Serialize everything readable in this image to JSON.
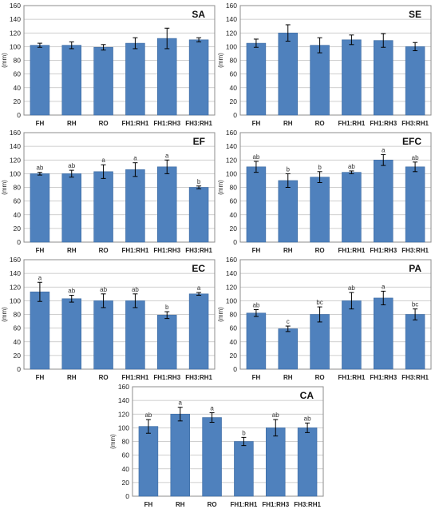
{
  "colors": {
    "bar": "#4f81bd",
    "bar_edge": "#3b6aa2",
    "frame": "#8c8c8c",
    "grid": "#bfbfbf",
    "error": "#000000"
  },
  "chart_data": [
    {
      "type": "bar",
      "title": "SA",
      "ylabel": "(mm)",
      "ylim": [
        0,
        160
      ],
      "yticks": [
        0,
        20,
        40,
        60,
        80,
        100,
        120,
        140,
        160
      ],
      "grid": true,
      "categories": [
        "FH",
        "RH",
        "RO",
        "FH1:RH1",
        "FH1:RH3",
        "FH3:RH1"
      ],
      "values": [
        102,
        102,
        99,
        105,
        112,
        110
      ],
      "errors": [
        3,
        5,
        4,
        8,
        15,
        3
      ],
      "letters": []
    },
    {
      "type": "bar",
      "title": "SE",
      "ylabel": "(mm)",
      "ylim": [
        0,
        160
      ],
      "yticks": [
        0,
        20,
        40,
        60,
        80,
        100,
        120,
        140,
        160
      ],
      "grid": true,
      "categories": [
        "FH",
        "RH",
        "RO",
        "FH1:RH1",
        "FH1:RH3",
        "FH3:RH1"
      ],
      "values": [
        105,
        120,
        102,
        110,
        109,
        100
      ],
      "errors": [
        6,
        12,
        11,
        7,
        10,
        6
      ],
      "letters": []
    },
    {
      "type": "bar",
      "title": "EF",
      "ylabel": "(mm)",
      "ylim": [
        0,
        160
      ],
      "yticks": [
        0,
        20,
        40,
        60,
        80,
        100,
        120,
        140,
        160
      ],
      "grid": true,
      "categories": [
        "FH",
        "RH",
        "RO",
        "FH1:RH1",
        "FH1:RH3",
        "FH3:RH1"
      ],
      "values": [
        100,
        100,
        103,
        106,
        110,
        80
      ],
      "errors": [
        2,
        5,
        10,
        10,
        10,
        2
      ],
      "letters": [
        "ab",
        "ab",
        "a",
        "a",
        "a",
        "b"
      ]
    },
    {
      "type": "bar",
      "title": "EFC",
      "ylabel": "(mm)",
      "ylim": [
        0,
        160
      ],
      "yticks": [
        0,
        20,
        40,
        60,
        80,
        100,
        120,
        140,
        160
      ],
      "grid": true,
      "categories": [
        "FH",
        "RH",
        "RO",
        "FH1:RH1",
        "FH1:RH3",
        "FH3:RH1"
      ],
      "values": [
        110,
        90,
        95,
        102,
        120,
        110
      ],
      "errors": [
        8,
        10,
        8,
        2,
        8,
        7
      ],
      "letters": [
        "ab",
        "b",
        "b",
        "ab",
        "a",
        "ab"
      ]
    },
    {
      "type": "bar",
      "title": "EC",
      "ylabel": "(mm)",
      "ylim": [
        0,
        160
      ],
      "yticks": [
        0,
        20,
        40,
        60,
        80,
        100,
        120,
        140,
        160
      ],
      "grid": true,
      "categories": [
        "FH",
        "RH",
        "RO",
        "FH1:RH1",
        "FH1:RH3",
        "FH3:RH1"
      ],
      "values": [
        113,
        103,
        100,
        100,
        79,
        110
      ],
      "errors": [
        14,
        5,
        10,
        10,
        5,
        2
      ],
      "letters": [
        "a",
        "ab",
        "ab",
        "ab",
        "b",
        "a"
      ]
    },
    {
      "type": "bar",
      "title": "PA",
      "ylabel": "(mm)",
      "ylim": [
        0,
        160
      ],
      "yticks": [
        0,
        20,
        40,
        60,
        80,
        100,
        120,
        140,
        160
      ],
      "grid": true,
      "categories": [
        "FH",
        "RH",
        "RO",
        "FH1:RH1",
        "FH1:RH3",
        "FH3:RH1"
      ],
      "values": [
        82,
        59,
        80,
        100,
        104,
        80
      ],
      "errors": [
        5,
        4,
        11,
        12,
        10,
        8
      ],
      "letters": [
        "ab",
        "c",
        "bc",
        "ab",
        "a",
        "bc"
      ]
    },
    {
      "type": "bar",
      "title": "CA",
      "ylabel": "(mm)",
      "ylim": [
        0,
        160
      ],
      "yticks": [
        0,
        20,
        40,
        60,
        80,
        100,
        120,
        140,
        160
      ],
      "grid": true,
      "categories": [
        "FH",
        "RH",
        "RO",
        "FH1:RH1",
        "FH1:RH3",
        "FH3:RH1"
      ],
      "values": [
        102,
        120,
        115,
        80,
        100,
        100
      ],
      "errors": [
        10,
        10,
        7,
        6,
        12,
        7
      ],
      "letters": [
        "ab",
        "a",
        "a",
        "b",
        "ab",
        "ab"
      ]
    }
  ]
}
